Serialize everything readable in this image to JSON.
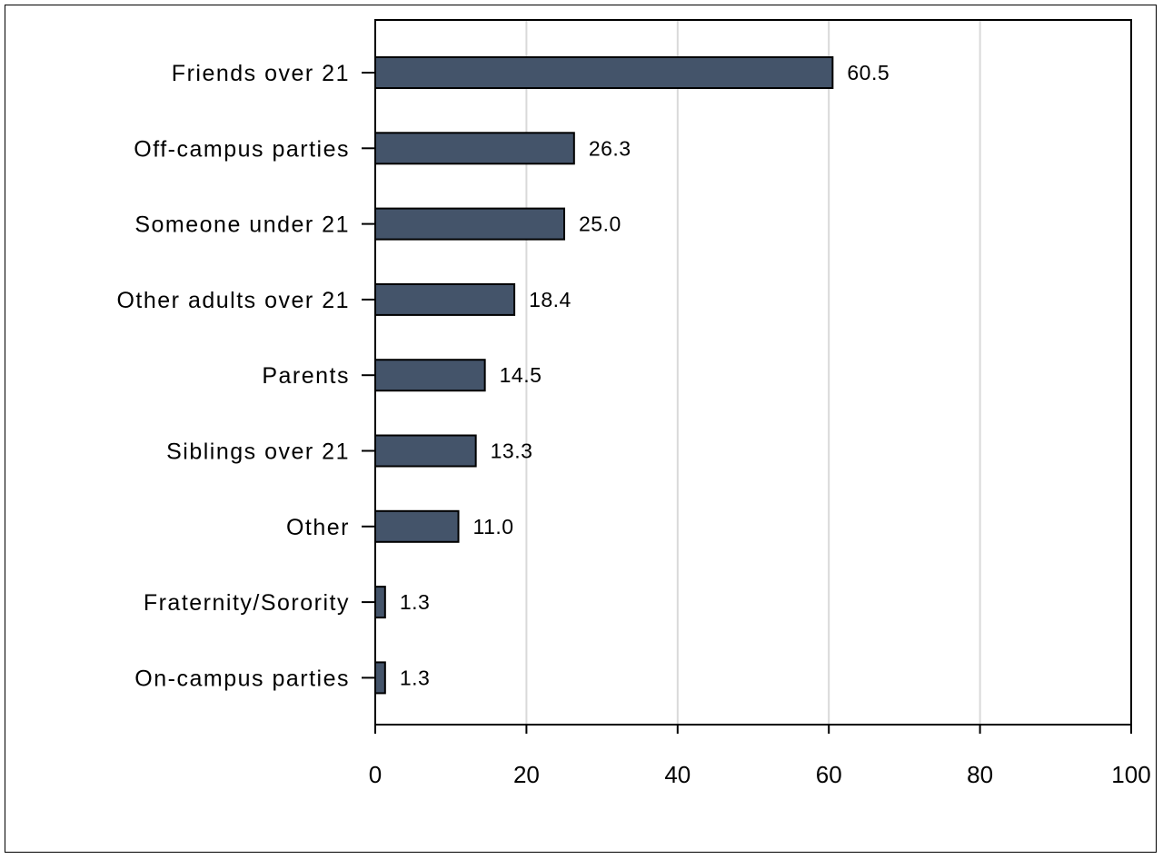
{
  "chart_data": {
    "type": "bar",
    "orientation": "horizontal",
    "title": "",
    "xlabel": "",
    "ylabel": "",
    "categories": [
      "Friends over 21",
      "Off-campus parties",
      "Someone under 21",
      "Other adults over 21",
      "Parents",
      "Siblings over 21",
      "Other",
      "Fraternity/Sorority",
      "On-campus parties"
    ],
    "values": [
      60.5,
      26.3,
      25.0,
      18.4,
      14.5,
      13.3,
      11.0,
      1.3,
      1.3
    ],
    "value_labels": [
      "60.5",
      "26.3",
      "25.0",
      "18.4",
      "14.5",
      "13.3",
      "11.0",
      "1.3",
      "1.3"
    ],
    "xlim": [
      0,
      100
    ],
    "xticks": [
      0,
      20,
      40,
      60,
      80,
      100
    ],
    "xtick_labels": [
      "0",
      "20",
      "40",
      "60",
      "80",
      "100"
    ],
    "grid": "vertical",
    "legend": "none",
    "colors": {
      "bar_fill": "#44546a",
      "bar_stroke": "#000000",
      "grid": "#d9d9d9",
      "axis": "#000000"
    }
  }
}
